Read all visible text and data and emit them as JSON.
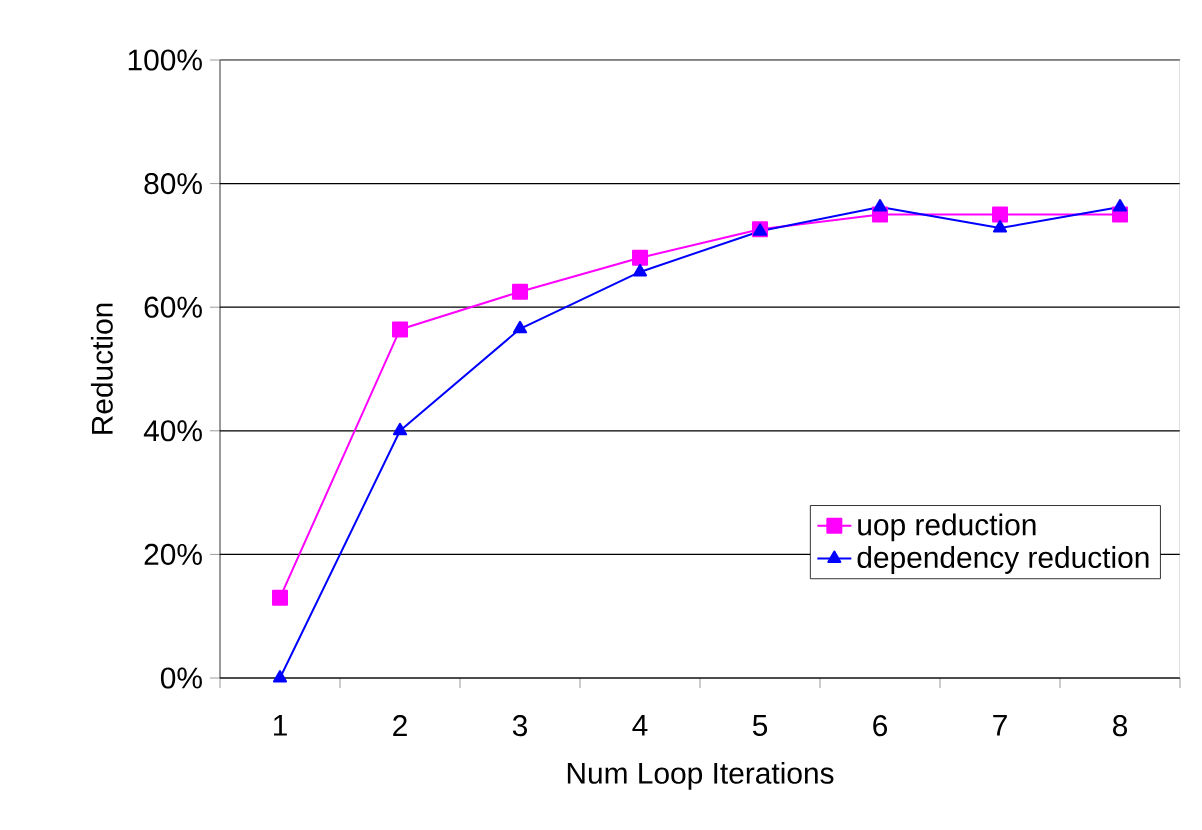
{
  "chart_data": {
    "type": "line",
    "xlabel": "Num Loop Iterations",
    "ylabel": "Reduction",
    "categories": [
      "1",
      "2",
      "3",
      "4",
      "5",
      "6",
      "7",
      "8"
    ],
    "series": [
      {
        "name": "uop reduction",
        "color": "#ff00ff",
        "marker": "square",
        "values": [
          13,
          56.4,
          62.5,
          68,
          72.6,
          75,
          75,
          75
        ]
      },
      {
        "name": "dependency reduction",
        "color": "#0000ff",
        "marker": "triangle",
        "values": [
          0,
          40,
          56.5,
          65.7,
          72.3,
          76.2,
          72.8,
          76.2
        ]
      }
    ],
    "ylim": [
      0,
      100
    ],
    "yticks": [
      {
        "value": 0,
        "label": "0%"
      },
      {
        "value": 20,
        "label": "20%"
      },
      {
        "value": 40,
        "label": "40%"
      },
      {
        "value": 60,
        "label": "60%"
      },
      {
        "value": 80,
        "label": "80%"
      },
      {
        "value": 100,
        "label": "100%"
      }
    ],
    "grid": "y",
    "legend": "bottom right",
    "line_style": "solid"
  }
}
